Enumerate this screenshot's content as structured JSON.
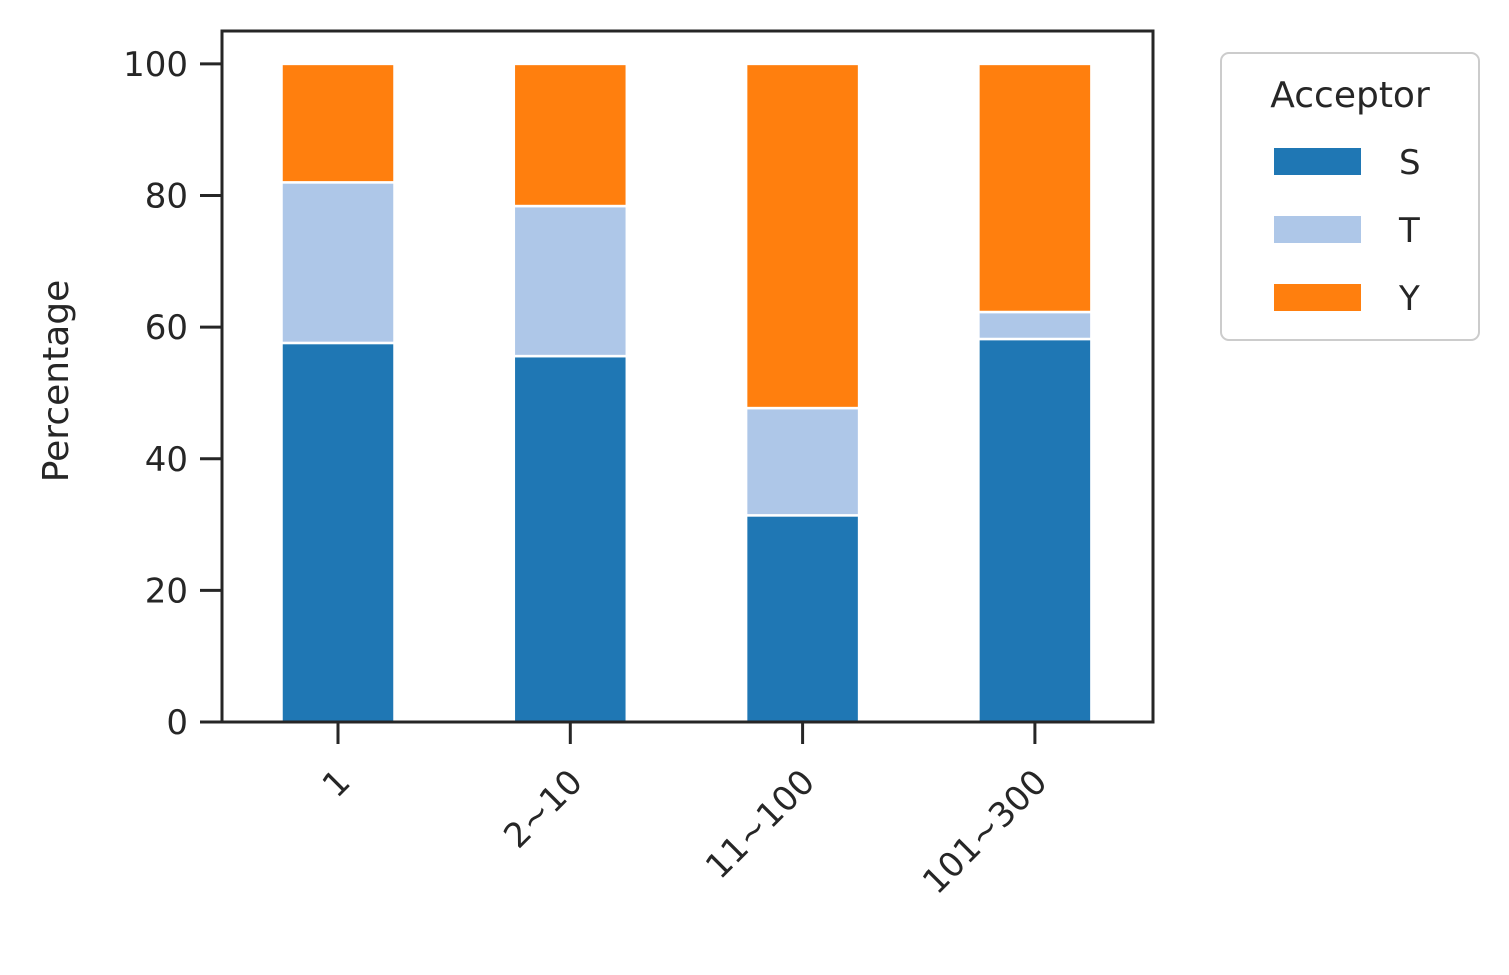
{
  "chart_data": {
    "type": "bar",
    "stacked": true,
    "categories": [
      "1",
      "2~10",
      "11~100",
      "101~300"
    ],
    "series": [
      {
        "name": "S",
        "color": "#1f77b4",
        "values": [
          57.6,
          55.6,
          31.4,
          58.2
        ]
      },
      {
        "name": "T",
        "color": "#aec7e8",
        "values": [
          24.4,
          22.8,
          16.3,
          4.1
        ]
      },
      {
        "name": "Y",
        "color": "#ff7f0e",
        "values": [
          18.0,
          21.6,
          52.3,
          37.7
        ]
      }
    ],
    "title": "",
    "xlabel": "",
    "ylabel": "Percentage",
    "ylim": [
      0,
      105
    ],
    "yticks": [
      0,
      20,
      40,
      60,
      80,
      100
    ],
    "grid": false,
    "legend": {
      "title": "Acceptor",
      "placement": "outside-top-right"
    }
  }
}
